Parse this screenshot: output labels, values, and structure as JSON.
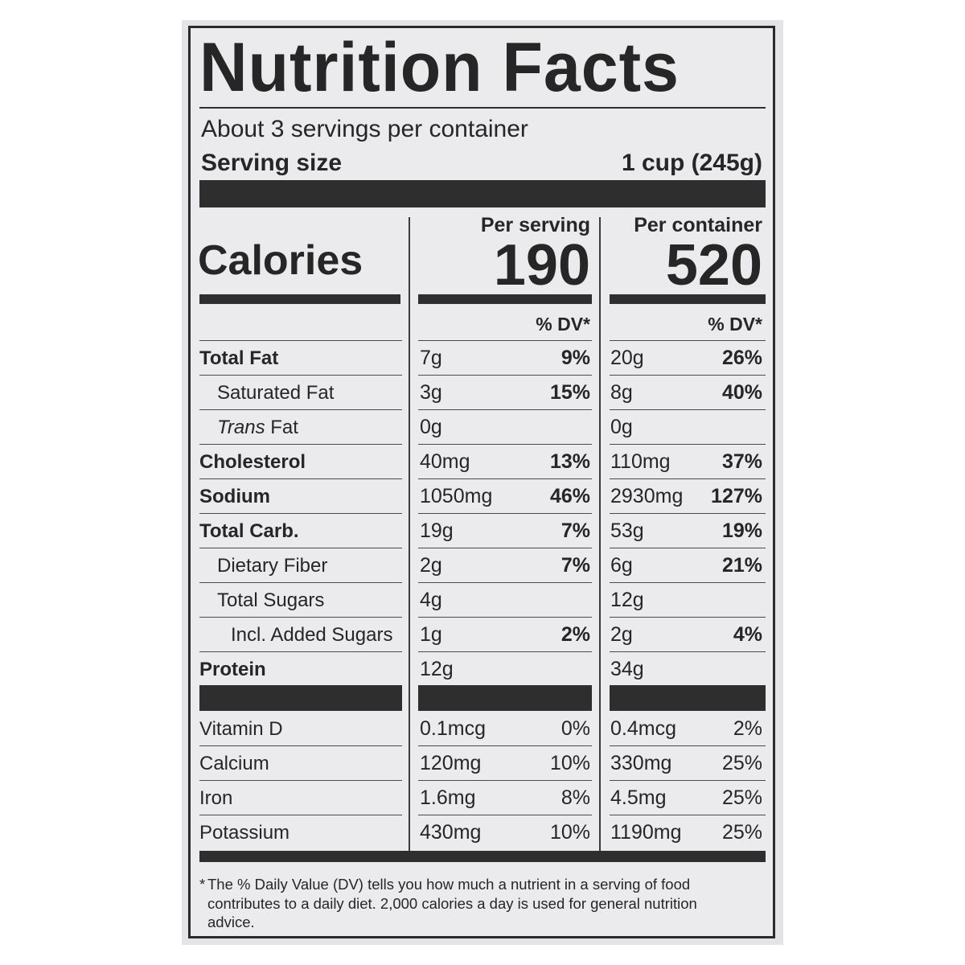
{
  "label": {
    "title": "Nutrition Facts",
    "servings_per_container": "About 3 servings per container",
    "serving_size_label": "Serving size",
    "serving_size_value": "1 cup (245g)",
    "calories_label": "Calories",
    "per_serving_label": "Per serving",
    "per_container_label": "Per container",
    "calories_per_serving": "190",
    "calories_per_container": "520",
    "dv_header": "% DV*"
  },
  "nutrients": [
    {
      "name": "Total Fat",
      "serving_amount": "7g",
      "serving_dv": "9%",
      "container_amount": "20g",
      "container_dv": "26%"
    },
    {
      "name": "Saturated Fat",
      "serving_amount": "3g",
      "serving_dv": "15%",
      "container_amount": "8g",
      "container_dv": "40%"
    },
    {
      "name_italic": "Trans",
      "name": " Fat",
      "serving_amount": "0g",
      "serving_dv": "",
      "container_amount": "0g",
      "container_dv": ""
    },
    {
      "name": "Cholesterol",
      "serving_amount": "40mg",
      "serving_dv": "13%",
      "container_amount": "110mg",
      "container_dv": "37%"
    },
    {
      "name": "Sodium",
      "serving_amount": "1050mg",
      "serving_dv": "46%",
      "container_amount": "2930mg",
      "container_dv": "127%"
    },
    {
      "name": "Total Carb.",
      "serving_amount": "19g",
      "serving_dv": "7%",
      "container_amount": "53g",
      "container_dv": "19%"
    },
    {
      "name": "Dietary Fiber",
      "serving_amount": "2g",
      "serving_dv": "7%",
      "container_amount": "6g",
      "container_dv": "21%"
    },
    {
      "name": "Total Sugars",
      "serving_amount": "4g",
      "serving_dv": "",
      "container_amount": "12g",
      "container_dv": ""
    },
    {
      "name": "Incl. Added Sugars",
      "serving_amount": "1g",
      "serving_dv": "2%",
      "container_amount": "2g",
      "container_dv": "4%"
    },
    {
      "name": "Protein",
      "serving_amount": "12g",
      "serving_dv": "",
      "container_amount": "34g",
      "container_dv": ""
    }
  ],
  "vitamins": [
    {
      "name": "Vitamin D",
      "serving_amount": "0.1mcg",
      "serving_dv": "0%",
      "container_amount": "0.4mcg",
      "container_dv": "2%"
    },
    {
      "name": "Calcium",
      "serving_amount": "120mg",
      "serving_dv": "10%",
      "container_amount": "330mg",
      "container_dv": "25%"
    },
    {
      "name": "Iron",
      "serving_amount": "1.6mg",
      "serving_dv": "8%",
      "container_amount": "4.5mg",
      "container_dv": "25%"
    },
    {
      "name": "Potassium",
      "serving_amount": "430mg",
      "serving_dv": "10%",
      "container_amount": "1190mg",
      "container_dv": "25%"
    }
  ],
  "footnote": {
    "marker": "*",
    "text": "The % Daily Value (DV) tells you how much a nutrient in a serving of food contributes to a daily diet. 2,000 calories a day is used for general nutrition advice."
  }
}
